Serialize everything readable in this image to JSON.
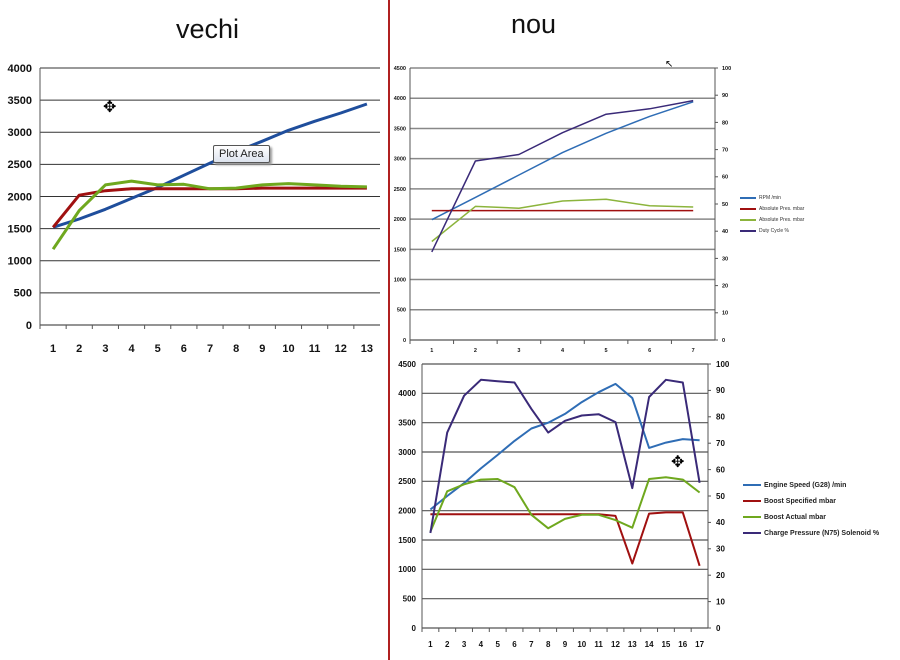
{
  "titles": {
    "left": "vechi",
    "right": "nou"
  },
  "tooltip": "Plot Area",
  "colors": {
    "blue": "#1f4e9c",
    "red": "#a01010",
    "green": "#6fa81e",
    "purple": "#3a2a78",
    "lightblue": "#2f6db5",
    "divider": "#b02020"
  },
  "chart_data": [
    {
      "id": "vechi",
      "type": "line",
      "title": "vechi",
      "categories": [
        "1",
        "2",
        "3",
        "4",
        "5",
        "6",
        "7",
        "8",
        "9",
        "10",
        "11",
        "12",
        "13"
      ],
      "ylim": [
        0,
        4000
      ],
      "yticks": [
        "0",
        "500",
        "1000",
        "1500",
        "2000",
        "2500",
        "3000",
        "3500",
        "4000"
      ],
      "grid": true,
      "legend": "none",
      "series": [
        {
          "name": "blue",
          "color": "#1f4e9c",
          "axis": "left",
          "values": [
            1520,
            1650,
            1800,
            1970,
            2140,
            2330,
            2520,
            2700,
            2860,
            3030,
            3170,
            3300,
            3440
          ]
        },
        {
          "name": "red",
          "color": "#a01010",
          "axis": "left",
          "values": [
            1520,
            2020,
            2090,
            2120,
            2120,
            2120,
            2120,
            2120,
            2130,
            2130,
            2130,
            2130,
            2130
          ]
        },
        {
          "name": "green",
          "color": "#6fa81e",
          "axis": "left",
          "values": [
            1180,
            1780,
            2180,
            2240,
            2180,
            2190,
            2120,
            2130,
            2180,
            2200,
            2180,
            2160,
            2150
          ]
        }
      ]
    },
    {
      "id": "nou-top",
      "type": "line",
      "title": "nou",
      "categories": [
        "1",
        "2",
        "3",
        "4",
        "5",
        "6",
        "7"
      ],
      "ylim": [
        0,
        4500
      ],
      "yticks": [
        "0",
        "500",
        "1000",
        "1500",
        "2000",
        "2500",
        "3000",
        "3500",
        "4000",
        "4500"
      ],
      "y2lim": [
        0,
        100
      ],
      "y2ticks": [
        "0",
        "10",
        "20",
        "30",
        "40",
        "50",
        "60",
        "70",
        "80",
        "90",
        "100"
      ],
      "grid": true,
      "legend": "right",
      "series": [
        {
          "name": "RPM  /min",
          "color": "#2f6db5",
          "axis": "left",
          "values": [
            1990,
            2360,
            2730,
            3100,
            3420,
            3700,
            3940
          ]
        },
        {
          "name": "Absolute Pres.  mbar",
          "color": "#a01010",
          "axis": "left",
          "values": [
            2140,
            2140,
            2140,
            2140,
            2140,
            2140,
            2140
          ]
        },
        {
          "name": "Absolute Pres.  mbar",
          "color": "#8cb43c",
          "axis": "left",
          "values": [
            1630,
            2210,
            2180,
            2300,
            2330,
            2220,
            2200
          ]
        },
        {
          "name": "Duty Cycle  %",
          "color": "#3a2a78",
          "axis": "right",
          "values": [
            32.4,
            65.8,
            68.2,
            76.2,
            83,
            85,
            88
          ]
        }
      ]
    },
    {
      "id": "nou-bottom",
      "type": "line",
      "categories": [
        "1",
        "2",
        "3",
        "4",
        "5",
        "6",
        "7",
        "8",
        "9",
        "10",
        "11",
        "12",
        "13",
        "14",
        "15",
        "16",
        "17"
      ],
      "ylim": [
        0,
        4500
      ],
      "yticks": [
        "0",
        "500",
        "1000",
        "1500",
        "2000",
        "2500",
        "3000",
        "3500",
        "4000",
        "4500"
      ],
      "y2lim": [
        0,
        100
      ],
      "y2ticks": [
        "0",
        "10",
        "20",
        "30",
        "40",
        "50",
        "60",
        "70",
        "80",
        "90",
        "100"
      ],
      "grid": true,
      "legend": "right",
      "series": [
        {
          "name": "Engine Speed (G28)  /min",
          "color": "#2f6db5",
          "axis": "left",
          "values": [
            2020,
            2250,
            2470,
            2720,
            2950,
            3190,
            3400,
            3500,
            3650,
            3850,
            4020,
            4160,
            3920,
            3070,
            3160,
            3220,
            3200
          ]
        },
        {
          "name": "Boost Specified  mbar",
          "color": "#a01010",
          "axis": "left",
          "values": [
            1940,
            1940,
            1940,
            1940,
            1940,
            1940,
            1940,
            1940,
            1940,
            1940,
            1940,
            1910,
            1100,
            1950,
            1970,
            1970,
            1060
          ]
        },
        {
          "name": "Boost Actual  mbar",
          "color": "#6fa81e",
          "axis": "left",
          "values": [
            1640,
            2330,
            2450,
            2530,
            2540,
            2400,
            1930,
            1700,
            1860,
            1930,
            1930,
            1840,
            1710,
            2540,
            2570,
            2530,
            2310
          ]
        },
        {
          "name": "Charge Pressure (N75) Solenoid  %",
          "color": "#3a2a78",
          "axis": "right",
          "values": [
            36,
            74,
            88,
            94,
            93.5,
            93,
            83,
            74,
            78.5,
            80.5,
            81,
            78,
            53,
            87.5,
            94,
            93,
            55
          ]
        }
      ]
    }
  ]
}
